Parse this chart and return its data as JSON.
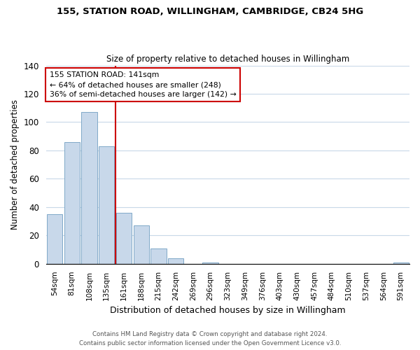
{
  "title": "155, STATION ROAD, WILLINGHAM, CAMBRIDGE, CB24 5HG",
  "subtitle": "Size of property relative to detached houses in Willingham",
  "xlabel": "Distribution of detached houses by size in Willingham",
  "ylabel": "Number of detached properties",
  "bar_labels": [
    "54sqm",
    "81sqm",
    "108sqm",
    "135sqm",
    "161sqm",
    "188sqm",
    "215sqm",
    "242sqm",
    "269sqm",
    "296sqm",
    "323sqm",
    "349sqm",
    "376sqm",
    "403sqm",
    "430sqm",
    "457sqm",
    "484sqm",
    "510sqm",
    "537sqm",
    "564sqm",
    "591sqm"
  ],
  "bar_values": [
    35,
    86,
    107,
    83,
    36,
    27,
    11,
    4,
    0,
    1,
    0,
    0,
    0,
    0,
    0,
    0,
    0,
    0,
    0,
    0,
    1
  ],
  "bar_color": "#c8d8ea",
  "bar_edge_color": "#7fa8c8",
  "vline_x": 3.5,
  "vline_color": "#cc0000",
  "annotation_text": "155 STATION ROAD: 141sqm\n← 64% of detached houses are smaller (248)\n36% of semi-detached houses are larger (142) →",
  "annotation_box_color": "#ffffff",
  "annotation_box_edgecolor": "#cc0000",
  "ylim": [
    0,
    140
  ],
  "footer1": "Contains HM Land Registry data © Crown copyright and database right 2024.",
  "footer2": "Contains public sector information licensed under the Open Government Licence v3.0.",
  "background_color": "#ffffff",
  "grid_color": "#c8d8e8"
}
